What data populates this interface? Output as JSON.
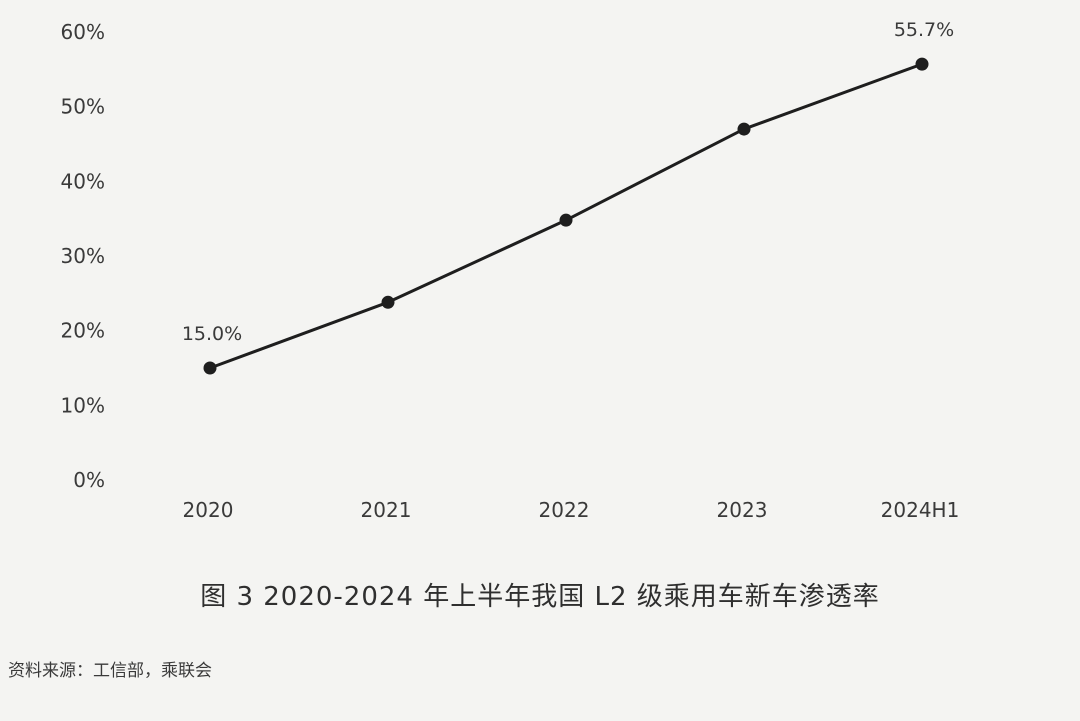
{
  "chart_data": {
    "type": "line",
    "categories": [
      "2020",
      "2021",
      "2022",
      "2023",
      "2024H1"
    ],
    "series": [
      {
        "values": [
          15.0,
          23.8,
          34.8,
          47.0,
          55.7
        ]
      }
    ],
    "data_labels": [
      {
        "index": 0,
        "text": "15.0%"
      },
      {
        "index": 4,
        "text": "55.7%"
      }
    ],
    "ylim": [
      0,
      60
    ],
    "yticks": [
      "0%",
      "10%",
      "20%",
      "30%",
      "40%",
      "50%",
      "60%"
    ],
    "line_color": "#1e1e1e",
    "grid": false,
    "legend": "none"
  },
  "caption": "图 3 2020-2024 年上半年我国 L2 级乘用车新车渗透率",
  "source": "资料来源：工信部，乘联会"
}
